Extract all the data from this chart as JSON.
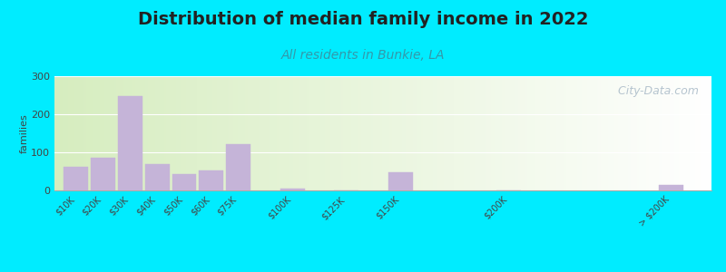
{
  "title": "Distribution of median family income in 2022",
  "subtitle": "All residents in Bunkie, LA",
  "ylabel": "families",
  "categories": [
    "$10K",
    "$20K",
    "$30K",
    "$40K",
    "$50K",
    "$60K",
    "$75K",
    "$100K",
    "$125K",
    "$150K",
    "$200K",
    "> $200K"
  ],
  "values": [
    62,
    85,
    248,
    68,
    42,
    52,
    122,
    5,
    0,
    48,
    0,
    15
  ],
  "bar_color": "#c5b4d8",
  "bar_edge_color": "#c5b4d8",
  "ylim": [
    0,
    300
  ],
  "yticks": [
    0,
    100,
    200,
    300
  ],
  "bg_outer": "#00ecff",
  "title_fontsize": 14,
  "title_color": "#222222",
  "subtitle_fontsize": 10,
  "subtitle_color": "#3399aa",
  "watermark": "  City-Data.com",
  "watermark_color": "#aabbc8",
  "watermark_fontsize": 9,
  "xlabel_fontsize": 7,
  "ylabel_fontsize": 8,
  "x_positions": [
    0,
    1,
    2,
    3,
    4,
    5,
    6,
    8,
    10,
    12,
    16,
    22
  ],
  "bar_width": 0.9
}
